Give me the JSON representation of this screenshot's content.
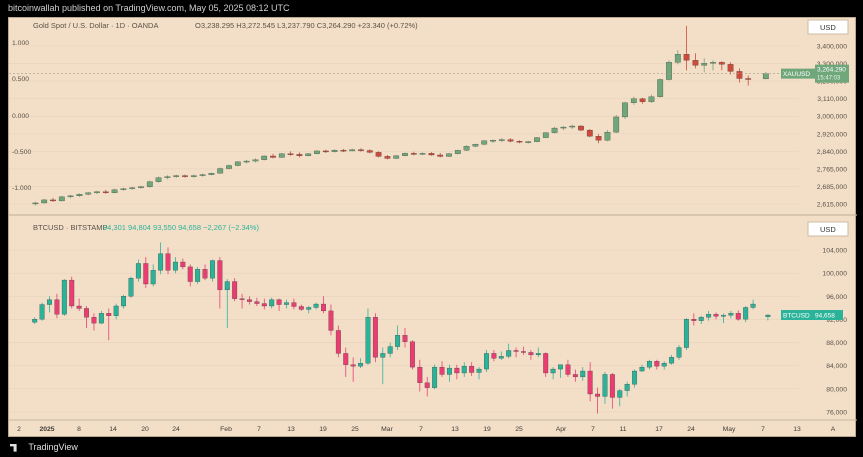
{
  "header": {
    "publisher_line": "bitcoinwallah published on TradingView.com, May 05, 2025 08:12 UTC"
  },
  "footer": {
    "brand": "TradingView"
  },
  "colors": {
    "background": "#f3dfc8",
    "up": "#6fa77b",
    "down": "#cf4a3a",
    "btc_up": "#2bb39a",
    "btc_down": "#ea3e72",
    "grid": "#e7d2ba",
    "text": "#5a5248"
  },
  "chart_data": [
    {
      "type": "candlestick",
      "symbol_line": {
        "title": "Gold Spot / U.S. Dollar · 1D · OANDA",
        "ohlc": "O3,238.295  H3,272.545  L3,237.790  C3,264.290  +23.340 (+0.72%)"
      },
      "currency_label": "USD",
      "right_axis_ticks": [
        "3,400,000",
        "3,300,000",
        "3,200,000",
        "3,110,000",
        "3,000,000",
        "2,920,000",
        "2,840,000",
        "2,765,000",
        "2,685,000",
        "2,615,000"
      ],
      "left_axis_ticks": [
        "1.000",
        "0.500",
        "0.000",
        "-0.500",
        "-1.000"
      ],
      "price_tag": {
        "ticker": "XAUUSD",
        "price": "3,264.290",
        "countdown": "15:47:03"
      },
      "candles": [
        [
          2620,
          2630,
          2612,
          2625
        ],
        [
          2625,
          2645,
          2622,
          2640
        ],
        [
          2640,
          2650,
          2630,
          2635
        ],
        [
          2635,
          2660,
          2633,
          2655
        ],
        [
          2655,
          2665,
          2648,
          2660
        ],
        [
          2660,
          2672,
          2655,
          2668
        ],
        [
          2668,
          2680,
          2662,
          2675
        ],
        [
          2675,
          2685,
          2668,
          2680
        ],
        [
          2680,
          2690,
          2670,
          2675
        ],
        [
          2675,
          2695,
          2672,
          2690
        ],
        [
          2690,
          2700,
          2685,
          2695
        ],
        [
          2695,
          2705,
          2690,
          2700
        ],
        [
          2700,
          2710,
          2695,
          2705
        ],
        [
          2705,
          2735,
          2700,
          2730
        ],
        [
          2730,
          2755,
          2725,
          2750
        ],
        [
          2750,
          2762,
          2742,
          2755
        ],
        [
          2755,
          2765,
          2748,
          2760
        ],
        [
          2760,
          2765,
          2750,
          2755
        ],
        [
          2755,
          2765,
          2750,
          2760
        ],
        [
          2760,
          2770,
          2755,
          2765
        ],
        [
          2765,
          2775,
          2762,
          2772
        ],
        [
          2772,
          2800,
          2770,
          2795
        ],
        [
          2795,
          2815,
          2790,
          2810
        ],
        [
          2810,
          2832,
          2805,
          2828
        ],
        [
          2828,
          2838,
          2820,
          2832
        ],
        [
          2832,
          2845,
          2825,
          2838
        ],
        [
          2838,
          2860,
          2835,
          2857
        ],
        [
          2857,
          2868,
          2845,
          2850
        ],
        [
          2850,
          2872,
          2848,
          2868
        ],
        [
          2868,
          2880,
          2858,
          2865
        ],
        [
          2865,
          2875,
          2850,
          2858
        ],
        [
          2858,
          2872,
          2855,
          2868
        ],
        [
          2868,
          2885,
          2865,
          2882
        ],
        [
          2882,
          2888,
          2872,
          2878
        ],
        [
          2878,
          2890,
          2874,
          2886
        ],
        [
          2886,
          2892,
          2876,
          2882
        ],
        [
          2882,
          2894,
          2880,
          2888
        ],
        [
          2888,
          2895,
          2878,
          2884
        ],
        [
          2884,
          2890,
          2870,
          2875
        ],
        [
          2875,
          2880,
          2850,
          2855
        ],
        [
          2855,
          2862,
          2840,
          2845
        ],
        [
          2845,
          2862,
          2842,
          2858
        ],
        [
          2858,
          2875,
          2855,
          2870
        ],
        [
          2870,
          2878,
          2860,
          2865
        ],
        [
          2865,
          2875,
          2862,
          2870
        ],
        [
          2870,
          2876,
          2858,
          2862
        ],
        [
          2862,
          2872,
          2850,
          2855
        ],
        [
          2855,
          2872,
          2852,
          2868
        ],
        [
          2868,
          2888,
          2865,
          2885
        ],
        [
          2885,
          2910,
          2882,
          2905
        ],
        [
          2905,
          2918,
          2900,
          2915
        ],
        [
          2915,
          2935,
          2910,
          2932
        ],
        [
          2932,
          2940,
          2922,
          2935
        ],
        [
          2935,
          2945,
          2925,
          2938
        ],
        [
          2938,
          2945,
          2925,
          2930
        ],
        [
          2930,
          2935,
          2920,
          2925
        ],
        [
          2925,
          2932,
          2918,
          2928
        ],
        [
          2928,
          2950,
          2925,
          2948
        ],
        [
          2948,
          2975,
          2945,
          2972
        ],
        [
          2972,
          3000,
          2968,
          2995
        ],
        [
          2995,
          3005,
          2985,
          3000
        ],
        [
          3000,
          3012,
          2990,
          3005
        ],
        [
          3005,
          3010,
          2980,
          2985
        ],
        [
          2985,
          2990,
          2950,
          2955
        ],
        [
          2955,
          2965,
          2920,
          2935
        ],
        [
          2935,
          2985,
          2930,
          2975
        ],
        [
          2975,
          3060,
          2970,
          3050
        ],
        [
          3050,
          3125,
          3040,
          3120
        ],
        [
          3120,
          3150,
          3110,
          3140
        ],
        [
          3140,
          3145,
          3115,
          3125
        ],
        [
          3125,
          3160,
          3120,
          3150
        ],
        [
          3150,
          3240,
          3145,
          3235
        ],
        [
          3235,
          3330,
          3230,
          3320
        ],
        [
          3320,
          3380,
          3310,
          3360
        ],
        [
          3360,
          3500,
          3280,
          3330
        ],
        [
          3330,
          3365,
          3290,
          3305
        ],
        [
          3305,
          3340,
          3270,
          3315
        ],
        [
          3315,
          3330,
          3280,
          3320
        ],
        [
          3320,
          3325,
          3280,
          3310
        ],
        [
          3310,
          3320,
          3260,
          3275
        ],
        [
          3275,
          3290,
          3220,
          3240
        ],
        [
          3240,
          3255,
          3205,
          3235
        ],
        [
          3238,
          3272,
          3237,
          3264
        ]
      ],
      "gold_gap_after": 81,
      "y_min": 2600,
      "y_max": 3450
    },
    {
      "type": "candlestick",
      "symbol_line": {
        "title": "BTCUSD · BITSTAMP",
        "ohlc": "94,301  94,804  93,550  94,658  −2,267 (−2.34%)"
      },
      "currency_label": "USD",
      "right_axis_ticks": [
        "104,000",
        "100,000",
        "96,000",
        "92,000",
        "88,000",
        "84,000",
        "80,000",
        "76,000"
      ],
      "price_tag": {
        "ticker": "BTCUSD",
        "price": "94,658"
      },
      "x_axis_labels": [
        "2",
        "2025",
        "8",
        "14",
        "20",
        "24",
        "Feb",
        "7",
        "13",
        "19",
        "25",
        "Mar",
        "7",
        "13",
        "19",
        "25",
        "Apr",
        "7",
        "11",
        "17",
        "24",
        "May",
        "7",
        "13",
        "A"
      ],
      "candles": [
        [
          93200,
          94200,
          92800,
          93800
        ],
        [
          93800,
          97200,
          93500,
          96800
        ],
        [
          96800,
          98500,
          95200,
          97800
        ],
        [
          97800,
          99000,
          94000,
          94800
        ],
        [
          94800,
          102000,
          94500,
          101800
        ],
        [
          101800,
          102500,
          96000,
          96500
        ],
        [
          96500,
          98000,
          95500,
          96000
        ],
        [
          96000,
          96500,
          92000,
          94200
        ],
        [
          94200,
          95000,
          91500,
          93000
        ],
        [
          93000,
          95500,
          92800,
          95000
        ],
        [
          95000,
          96000,
          89500,
          94500
        ],
        [
          94500,
          97000,
          93800,
          96500
        ],
        [
          96500,
          98800,
          96000,
          98500
        ],
        [
          98500,
          102500,
          98200,
          102200
        ],
        [
          102200,
          106000,
          101500,
          105200
        ],
        [
          105200,
          106500,
          100200,
          101000
        ],
        [
          101000,
          105000,
          100500,
          103800
        ],
        [
          103800,
          109500,
          103000,
          107200
        ],
        [
          107200,
          108500,
          103000,
          103800
        ],
        [
          103800,
          106500,
          103200,
          105500
        ],
        [
          105500,
          106200,
          104000,
          104500
        ],
        [
          104500,
          105000,
          100500,
          101500
        ],
        [
          101500,
          104500,
          101000,
          104000
        ],
        [
          104000,
          105000,
          101800,
          102200
        ],
        [
          102200,
          106000,
          101500,
          105800
        ],
        [
          105800,
          106500,
          96000,
          99800
        ],
        [
          99800,
          102000,
          92000,
          101500
        ],
        [
          101500,
          102200,
          97500,
          98000
        ],
        [
          98000,
          99000,
          96000,
          97800
        ],
        [
          97800,
          98500,
          96800,
          97400
        ],
        [
          97400,
          98200,
          96500,
          97000
        ],
        [
          97000,
          98000,
          95800,
          96500
        ],
        [
          96500,
          98200,
          96000,
          97800
        ],
        [
          97800,
          98000,
          95500,
          96800
        ],
        [
          96800,
          97800,
          96000,
          97200
        ],
        [
          97200,
          98000,
          95800,
          96400
        ],
        [
          96400,
          96800,
          95500,
          95800
        ],
        [
          95800,
          96500,
          95000,
          96200
        ],
        [
          96200,
          97200,
          95800,
          96900
        ],
        [
          96900,
          98500,
          95000,
          95500
        ],
        [
          95500,
          96800,
          90500,
          91500
        ],
        [
          91500,
          92500,
          86000,
          86800
        ],
        [
          86800,
          88000,
          82000,
          84500
        ],
        [
          84500,
          86000,
          81000,
          84200
        ],
        [
          84200,
          85800,
          83800,
          84800
        ],
        [
          84800,
          96000,
          84500,
          94200
        ],
        [
          94200,
          95000,
          85000,
          86000
        ],
        [
          86000,
          88000,
          80500,
          86800
        ],
        [
          86800,
          89000,
          86000,
          88200
        ],
        [
          88200,
          92500,
          87500,
          90500
        ],
        [
          90500,
          92000,
          88000,
          89200
        ],
        [
          89200,
          89500,
          83500,
          84000
        ],
        [
          84000,
          85500,
          79000,
          80800
        ],
        [
          80800,
          82000,
          78000,
          79800
        ],
        [
          79800,
          84500,
          79500,
          84000
        ],
        [
          84000,
          85200,
          82000,
          82500
        ],
        [
          82500,
          84500,
          81000,
          83800
        ],
        [
          83800,
          84500,
          81500,
          82800
        ],
        [
          82800,
          85000,
          82000,
          84200
        ],
        [
          84200,
          85000,
          82200,
          82900
        ],
        [
          82900,
          84000,
          81500,
          83600
        ],
        [
          83600,
          87500,
          83000,
          86800
        ],
        [
          86800,
          87500,
          85200,
          85800
        ],
        [
          85800,
          87200,
          85500,
          86200
        ],
        [
          86200,
          88800,
          85800,
          87400
        ],
        [
          87400,
          88000,
          86000,
          87200
        ],
        [
          87200,
          88200,
          86500,
          87000
        ],
        [
          87000,
          87500,
          85500,
          86500
        ],
        [
          86500,
          88000,
          86000,
          86800
        ],
        [
          86800,
          87000,
          82000,
          82800
        ],
        [
          82800,
          84000,
          81500,
          83600
        ],
        [
          83600,
          84500,
          81800,
          84500
        ],
        [
          84500,
          85500,
          82000,
          82500
        ],
        [
          82500,
          83500,
          81000,
          82000
        ],
        [
          82000,
          84000,
          81200,
          83200
        ],
        [
          83200,
          85000,
          77000,
          78500
        ],
        [
          78500,
          79800,
          74500,
          78000
        ],
        [
          78000,
          83000,
          76500,
          82500
        ],
        [
          82500,
          82800,
          75500,
          77800
        ],
        [
          77800,
          79500,
          76000,
          79200
        ],
        [
          79200,
          81000,
          78000,
          80500
        ],
        [
          80500,
          83500,
          79800,
          83200
        ],
        [
          83200,
          84500,
          83000,
          84000
        ],
        [
          84000,
          85500,
          83500,
          85200
        ],
        [
          85200,
          85500,
          83500,
          84200
        ],
        [
          84200,
          85200,
          83500,
          84800
        ],
        [
          84800,
          86500,
          84500,
          86000
        ],
        [
          86000,
          88500,
          85500,
          88000
        ],
        [
          88000,
          94000,
          87500,
          93800
        ],
        [
          93800,
          95000,
          92500,
          93500
        ],
        [
          93500,
          94500,
          92800,
          94200
        ],
        [
          94200,
          95500,
          93500,
          94800
        ],
        [
          94800,
          95200,
          93800,
          94400
        ],
        [
          94400,
          95000,
          93000,
          94600
        ],
        [
          94600,
          95500,
          94000,
          95000
        ],
        [
          95000,
          95600,
          93500,
          93800
        ],
        [
          93800,
          96500,
          93200,
          96200
        ],
        [
          96200,
          97800,
          95800,
          96900
        ],
        [
          94301,
          94804,
          93550,
          94658
        ]
      ],
      "btc_gap_after": 97,
      "y_min": 74000,
      "y_max": 110000
    }
  ]
}
